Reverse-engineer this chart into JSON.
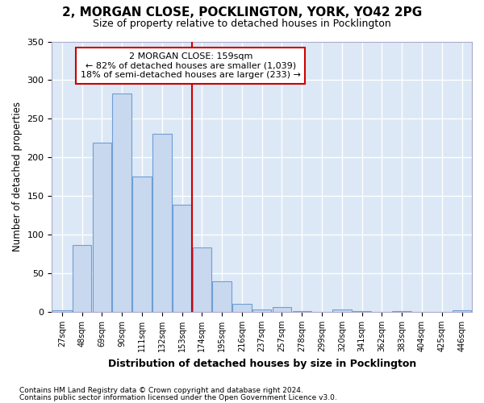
{
  "title1": "2, MORGAN CLOSE, POCKLINGTON, YORK, YO42 2PG",
  "title2": "Size of property relative to detached houses in Pocklington",
  "xlabel": "Distribution of detached houses by size in Pocklington",
  "ylabel": "Number of detached properties",
  "footnote1": "Contains HM Land Registry data © Crown copyright and database right 2024.",
  "footnote2": "Contains public sector information licensed under the Open Government Licence v3.0.",
  "bar_labels": [
    "27sqm",
    "48sqm",
    "69sqm",
    "90sqm",
    "111sqm",
    "132sqm",
    "153sqm",
    "174sqm",
    "195sqm",
    "216sqm",
    "237sqm",
    "257sqm",
    "278sqm",
    "299sqm",
    "320sqm",
    "341sqm",
    "362sqm",
    "383sqm",
    "404sqm",
    "425sqm",
    "446sqm"
  ],
  "bar_values": [
    2,
    87,
    219,
    283,
    175,
    231,
    139,
    83,
    40,
    10,
    3,
    6,
    1,
    0,
    3,
    1,
    0,
    1,
    0,
    0,
    2
  ],
  "bar_color": "#c8d8ef",
  "bar_edgecolor": "#6e9fd4",
  "property_line_x": 6.5,
  "property_line_color": "#cc0000",
  "annotation_line1": "2 MORGAN CLOSE: 159sqm",
  "annotation_line2": "← 82% of detached houses are smaller (1,039)",
  "annotation_line3": "18% of semi-detached houses are larger (233) →",
  "annotation_box_edgecolor": "#cc0000",
  "bg_color": "#ffffff",
  "plot_bg_color": "#dce8f5",
  "grid_color": "#ffffff",
  "ylim": [
    0,
    350
  ],
  "yticks": [
    0,
    50,
    100,
    150,
    200,
    250,
    300,
    350
  ]
}
